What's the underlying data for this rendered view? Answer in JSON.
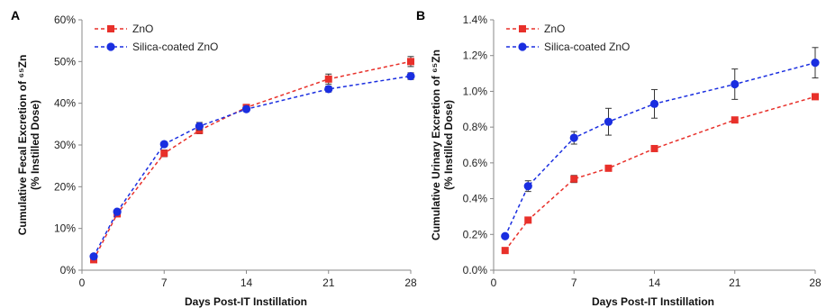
{
  "chart_data": [
    {
      "type": "line",
      "panel_label": "A",
      "xlabel": "Days Post-IT Instillation",
      "ylabel_line1": "Cumulative Fecal Excretion of ⁶⁵Zn",
      "ylabel_line2": "(% Instilled Dose)",
      "xlim": [
        0,
        28
      ],
      "ylim": [
        0,
        60
      ],
      "x_ticks": [
        0,
        7,
        14,
        21,
        28
      ],
      "x_tick_labels": [
        "0",
        "7",
        "14",
        "21",
        "28"
      ],
      "y_ticks": [
        0,
        10,
        20,
        30,
        40,
        50,
        60
      ],
      "y_tick_labels": [
        "0%",
        "10%",
        "20%",
        "30%",
        "40%",
        "50%",
        "60%"
      ],
      "grid": false,
      "legend_position": "top-left",
      "series": [
        {
          "name": "ZnO",
          "color": "#e8302a",
          "marker": "square",
          "x": [
            1,
            3,
            7,
            10,
            14,
            21,
            28
          ],
          "y": [
            2.5,
            13.5,
            28.0,
            33.5,
            39.0,
            45.8,
            50.0
          ],
          "err": [
            0.5,
            0.6,
            0.8,
            0.8,
            0.6,
            1.2,
            1.2
          ]
        },
        {
          "name": "Silica-coated ZnO",
          "color": "#1a2ee0",
          "marker": "circle",
          "x": [
            1,
            3,
            7,
            10,
            14,
            21,
            28
          ],
          "y": [
            3.3,
            14.0,
            30.2,
            34.5,
            38.6,
            43.4,
            46.5
          ],
          "err": [
            0.4,
            0.5,
            0.6,
            0.9,
            0.6,
            0.7,
            0.8
          ]
        }
      ]
    },
    {
      "type": "line",
      "panel_label": "B",
      "xlabel": "Days Post-IT Instillation",
      "ylabel_line1": "Cumulative Urinary Excretion of ⁶⁵Zn",
      "ylabel_line2": "(% Instilled Dose)",
      "xlim": [
        0,
        28
      ],
      "ylim": [
        0,
        1.4
      ],
      "x_ticks": [
        0,
        7,
        14,
        21,
        28
      ],
      "x_tick_labels": [
        "0",
        "7",
        "14",
        "21",
        "28"
      ],
      "y_ticks": [
        0,
        0.2,
        0.4,
        0.6,
        0.8,
        1.0,
        1.2,
        1.4
      ],
      "y_tick_labels": [
        "0.0%",
        "0.2%",
        "0.4%",
        "0.6%",
        "0.8%",
        "1.0%",
        "1.2%",
        "1.4%"
      ],
      "grid": false,
      "legend_position": "top-left",
      "series": [
        {
          "name": "ZnO",
          "color": "#e8302a",
          "marker": "square",
          "x": [
            1,
            3,
            7,
            10,
            14,
            21,
            28
          ],
          "y": [
            0.11,
            0.28,
            0.51,
            0.57,
            0.68,
            0.84,
            0.97
          ],
          "err": [
            0.01,
            0.015,
            0.02,
            0.01,
            0.01,
            0.01,
            0.01
          ]
        },
        {
          "name": "Silica-coated ZnO",
          "color": "#1a2ee0",
          "marker": "circle",
          "x": [
            1,
            3,
            7,
            10,
            14,
            21,
            28
          ],
          "y": [
            0.19,
            0.47,
            0.74,
            0.83,
            0.93,
            1.04,
            1.16
          ],
          "err": [
            0.01,
            0.03,
            0.035,
            0.075,
            0.08,
            0.085,
            0.085
          ]
        }
      ]
    }
  ]
}
